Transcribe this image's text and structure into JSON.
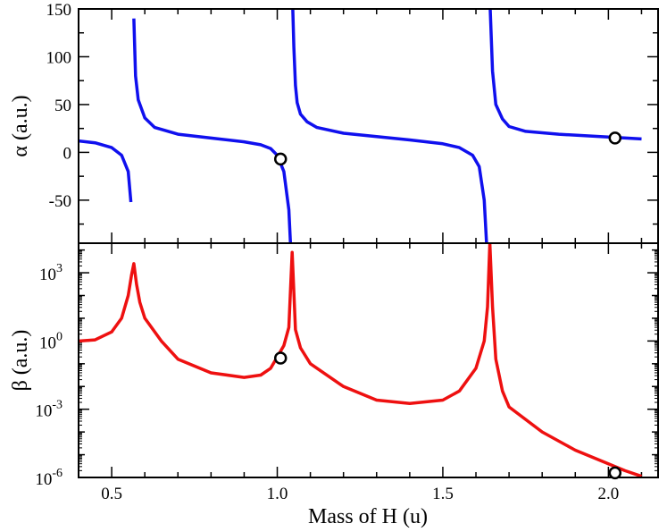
{
  "chart_data": [
    {
      "type": "line",
      "panel": "top",
      "ylabel": "α (a.u.)",
      "xlim": [
        0.4,
        2.15
      ],
      "ylim": [
        -95,
        150
      ],
      "y_ticks": [
        -50,
        0,
        50,
        100,
        150
      ],
      "y_tick_labels": [
        "-50",
        "0",
        "50",
        "100",
        "150"
      ],
      "color": "#1010ee",
      "series": [
        {
          "name": "alpha-branch-1",
          "x": [
            0.4,
            0.45,
            0.5,
            0.53,
            0.55,
            0.558
          ],
          "y": [
            12,
            10,
            5,
            -3,
            -20,
            -52
          ]
        },
        {
          "name": "alpha-branch-2",
          "x": [
            0.567,
            0.572,
            0.58,
            0.6,
            0.63,
            0.7,
            0.8,
            0.9,
            0.95,
            0.98,
            1.0,
            1.02,
            1.035,
            1.04
          ],
          "y": [
            140,
            80,
            55,
            36,
            26,
            19,
            15,
            11,
            8,
            4,
            -3,
            -20,
            -60,
            -95
          ]
        },
        {
          "name": "alpha-branch-3",
          "x": [
            1.047,
            1.05,
            1.055,
            1.06,
            1.07,
            1.09,
            1.12,
            1.2,
            1.4,
            1.5,
            1.55,
            1.59,
            1.61,
            1.625,
            1.632
          ],
          "y": [
            150,
            110,
            70,
            52,
            40,
            32,
            26,
            20,
            13,
            9,
            5,
            -3,
            -15,
            -50,
            -95
          ]
        },
        {
          "name": "alpha-branch-4",
          "x": [
            1.643,
            1.65,
            1.66,
            1.68,
            1.7,
            1.75,
            1.85,
            2.0,
            2.1
          ],
          "y": [
            150,
            85,
            50,
            35,
            27,
            22,
            19,
            16,
            14
          ]
        }
      ],
      "markers": [
        {
          "name": "alpha-marker-1",
          "x": 1.01,
          "y": -7
        },
        {
          "name": "alpha-marker-2",
          "x": 2.02,
          "y": 15
        }
      ]
    },
    {
      "type": "line",
      "panel": "bottom",
      "xlabel": "Mass of H (u)",
      "ylabel": "β (a.u.)",
      "xlim": [
        0.4,
        2.15
      ],
      "ylim_log10": [
        -6,
        4.3
      ],
      "y_ticks_log10": [
        -6,
        -3,
        0,
        3
      ],
      "y_tick_labels": [
        {
          "base": "10",
          "exp": "-6"
        },
        {
          "base": "10",
          "exp": "-3"
        },
        {
          "base": "10",
          "exp": "0"
        },
        {
          "base": "10",
          "exp": "3"
        }
      ],
      "x_ticks": [
        0.5,
        1.0,
        1.5,
        2.0
      ],
      "x_tick_labels": [
        "0.5",
        "1.0",
        "1.5",
        "2.0"
      ],
      "color": "#ee1010",
      "series": [
        {
          "name": "beta",
          "x": [
            0.4,
            0.45,
            0.5,
            0.53,
            0.55,
            0.56,
            0.567,
            0.575,
            0.585,
            0.6,
            0.65,
            0.7,
            0.8,
            0.9,
            0.95,
            0.98,
            1.0,
            1.02,
            1.035,
            1.045,
            1.055,
            1.07,
            1.1,
            1.2,
            1.3,
            1.4,
            1.5,
            1.55,
            1.6,
            1.625,
            1.635,
            1.642,
            1.65,
            1.66,
            1.68,
            1.7,
            1.8,
            1.9,
            2.0,
            2.05,
            2.1
          ],
          "log10_y": [
            0.0,
            0.05,
            0.4,
            1.0,
            2.0,
            2.9,
            3.4,
            2.5,
            1.7,
            1.0,
            0.0,
            -0.8,
            -1.4,
            -1.6,
            -1.5,
            -1.2,
            -0.7,
            -0.2,
            0.6,
            3.9,
            0.5,
            -0.3,
            -1.0,
            -2.0,
            -2.6,
            -2.75,
            -2.6,
            -2.2,
            -1.2,
            0.0,
            1.5,
            4.3,
            1.5,
            -0.8,
            -2.2,
            -2.9,
            -4.0,
            -4.8,
            -5.4,
            -5.7,
            -5.95
          ]
        }
      ],
      "markers": [
        {
          "name": "beta-marker-1",
          "x": 1.01,
          "log10_y": -0.75
        },
        {
          "name": "beta-marker-2",
          "x": 2.02,
          "log10_y": -5.8
        }
      ]
    }
  ]
}
